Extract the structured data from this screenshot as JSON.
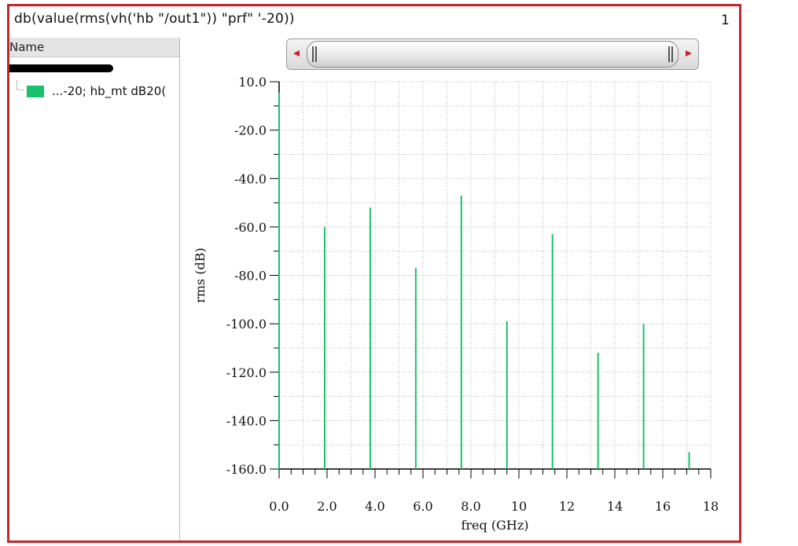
{
  "window": {
    "title": "db(value(rms(vh('hb \"/out1\")) \"prf\" '-20))",
    "page_number": "1"
  },
  "legend": {
    "header": "Name",
    "trace_label": "...-20; hb_mt dB20("
  },
  "colors": {
    "trace": "#18c26a",
    "frame_border": "#c0262b",
    "grid": "#b5b5b5",
    "scroll_arrow": "#d2202a"
  },
  "icons": {
    "scroll_left": "arrow-left-icon",
    "scroll_right": "arrow-right-icon"
  },
  "chart_data": {
    "type": "bar",
    "title": "",
    "xlabel": "freq (GHz)",
    "ylabel": "rms (dB)",
    "xlim": [
      0,
      18
    ],
    "ylim": [
      -160,
      0
    ],
    "grid": true,
    "x_ticks": [
      "0.0",
      "2.0",
      "4.0",
      "6.0",
      "8.0",
      "10",
      "12",
      "14",
      "16",
      "18"
    ],
    "y_ticks": [
      "10.0",
      "-20.0",
      "-40.0",
      "-60.0",
      "-80.0",
      "-100.0",
      "-120.0",
      "-140.0",
      "-160.0"
    ],
    "series": [
      {
        "name": "...-20; hb_mt dB20(",
        "x": [
          0.0,
          1.9,
          3.8,
          5.7,
          7.6,
          9.5,
          11.4,
          13.3,
          15.2,
          17.1
        ],
        "values": [
          -4.5,
          -60,
          -52,
          -77,
          -47,
          -99,
          -63,
          -112,
          -100,
          -153
        ]
      }
    ]
  }
}
